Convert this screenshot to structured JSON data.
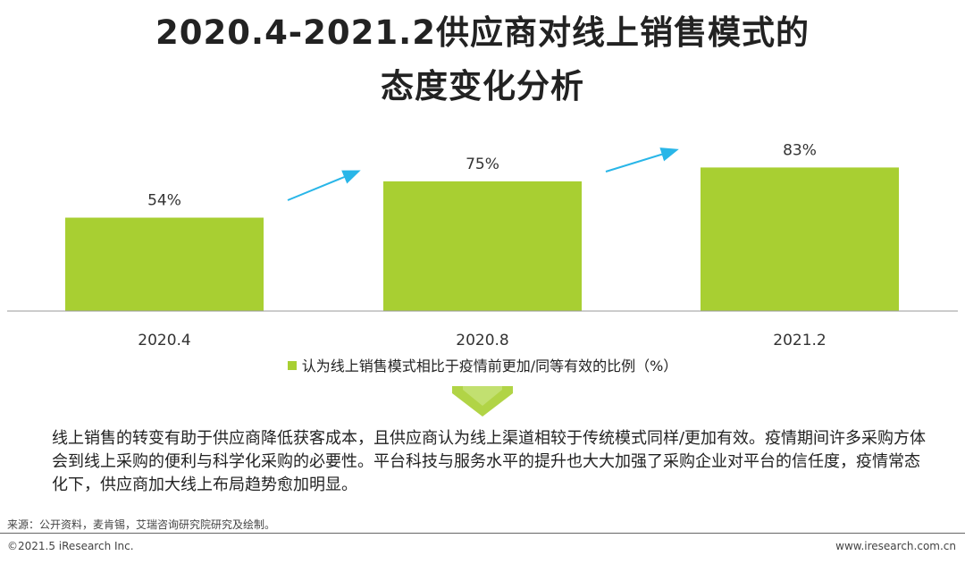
{
  "title": {
    "line1": "2020.4-2021.2供应商对线上销售模式的",
    "line2": "态度变化分析"
  },
  "chart_data": {
    "type": "bar",
    "categories": [
      "2020.4",
      "2020.8",
      "2021.2"
    ],
    "series": [
      {
        "name": "认为线上销售模式相比于疫情前更加/同等有效的比例（%）",
        "values": [
          54,
          75,
          83
        ]
      }
    ],
    "data_labels": [
      "54%",
      "75%",
      "83%"
    ],
    "ylim": [
      0,
      100
    ],
    "grid": false,
    "legend_position": "bottom",
    "colors": {
      "bar": "#a8cf32",
      "arrow": "#29b6e8",
      "axis": "#999999"
    }
  },
  "legend": {
    "label": "认为线上销售模式相比于疫情前更加/同等有效的比例（%）"
  },
  "summary": "线上销售的转变有助于供应商降低获客成本，且供应商认为线上渠道相较于传统模式同样/更加有效。疫情期间许多采购方体会到线上采购的便利与科学化采购的必要性。平台科技与服务水平的提升也大大加强了采购企业对平台的信任度，疫情常态化下，供应商加大线上布局趋势愈加明显。",
  "footer": {
    "source": "来源：公开资料，麦肯锡，艾瑞咨询研究院研究及绘制。",
    "copyright": "©2021.5 iResearch Inc.",
    "website": "www.iresearch.com.cn"
  }
}
